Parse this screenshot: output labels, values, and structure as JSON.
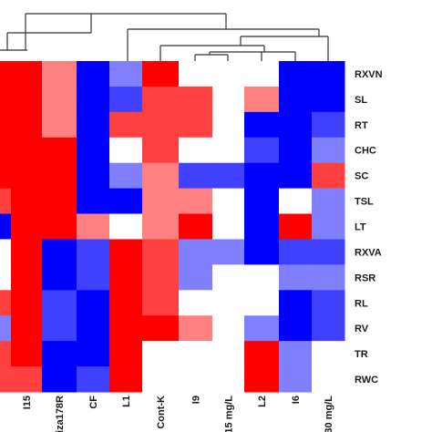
{
  "chart_data": {
    "type": "heatmap",
    "columns": [
      "",
      "I15",
      "Giza178R",
      "CF",
      "L1",
      "Cont-K",
      "I9",
      "15 mg/L",
      "L2",
      "I6",
      "30 mg/L"
    ],
    "rows": [
      "RXVN",
      "SL",
      "RT",
      "CHC",
      "SC",
      "TSL",
      "LT",
      "RXVA",
      "RSR",
      "RL",
      "RV",
      "TR",
      "RWC"
    ],
    "values": [
      [
        2,
        2,
        1,
        -2,
        -1,
        2,
        0,
        0,
        0,
        -2,
        -2
      ],
      [
        2,
        2,
        1,
        -2,
        -1.5,
        1.5,
        1.5,
        0,
        1,
        -2,
        -2
      ],
      [
        2,
        2,
        1,
        -2,
        1.5,
        1.5,
        1.5,
        0,
        -2,
        -2,
        -1.5
      ],
      [
        2,
        2,
        2,
        -2,
        0,
        1.5,
        0,
        0,
        -1.5,
        -2,
        -1
      ],
      [
        2,
        2,
        2,
        -2,
        -1,
        1,
        -1.5,
        -1.5,
        -2,
        -2,
        1.5
      ],
      [
        1.5,
        2,
        2,
        -2,
        -2,
        1,
        1,
        0,
        -2,
        0,
        -1
      ],
      [
        -2,
        2,
        2,
        1,
        0,
        1,
        2,
        0,
        -2,
        2,
        -1
      ],
      [
        0,
        2,
        -2,
        -1.5,
        2,
        1.5,
        -1,
        -1,
        -2,
        -1.5,
        -1.5
      ],
      [
        0,
        2,
        -2,
        -1.5,
        2,
        1.5,
        -1,
        0,
        0,
        -1,
        -1
      ],
      [
        1.5,
        2,
        -1.5,
        -2,
        2,
        1.5,
        0,
        0,
        0,
        -2,
        -1.5
      ],
      [
        -1,
        2,
        -1.5,
        -2,
        2,
        2,
        1,
        0,
        -1,
        -2,
        -1.5
      ],
      [
        1.5,
        2,
        -2,
        -2,
        2,
        0,
        0,
        0,
        2,
        -1,
        0
      ],
      [
        1.5,
        1.5,
        -2,
        -1.5,
        2,
        0,
        0,
        0,
        2,
        -1,
        0
      ]
    ],
    "color_scale": {
      "low": "#0000ff",
      "mid": "#ffffff",
      "high": "#ff0000",
      "range": [
        -2,
        2
      ]
    },
    "title": "",
    "xlabel": "",
    "ylabel": ""
  }
}
